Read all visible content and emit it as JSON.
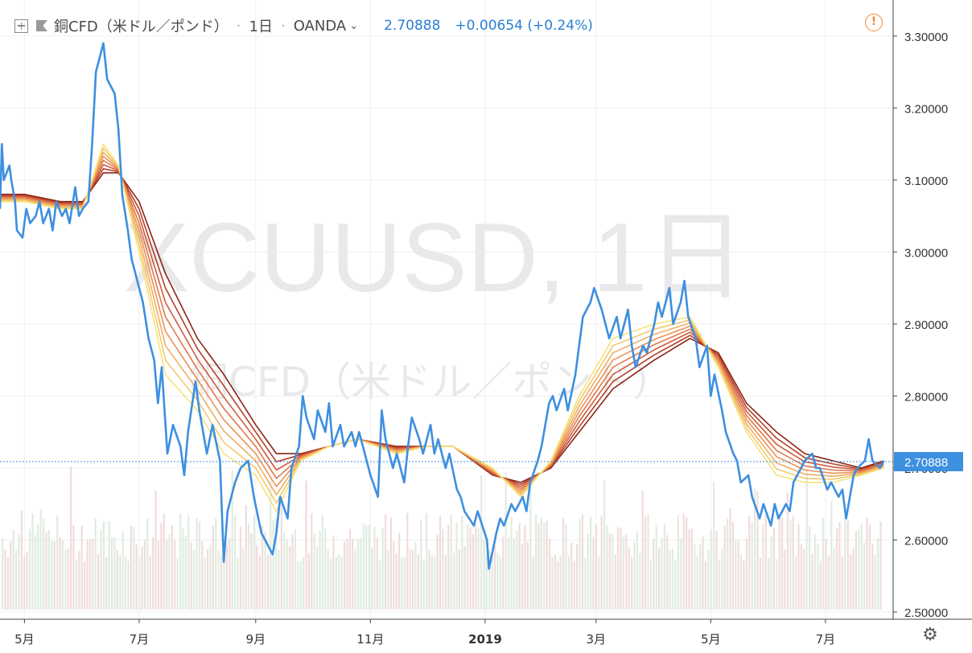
{
  "header": {
    "symbol_name": "銅CFD（米ドル／ポンド）",
    "interval": "1日",
    "exchange": "OANDA",
    "last_price": "2.70888",
    "change": "+0.00654 (+0.24%)"
  },
  "watermark": {
    "line1": "XCUUSD, 1日",
    "line2": "銅CFD（米ドル／ポンド）"
  },
  "icons": {
    "add": "plus-square-icon",
    "flag": "flag-icon",
    "dropdown": "chevron-down-icon",
    "warning": "warning-icon",
    "settings": "gear-icon"
  },
  "colors": {
    "price_line": "#3d8fe0",
    "last_price_badge": "#3d8fe0",
    "ribbon_fast": "#f6e27a",
    "ribbon_slow": "#8b2413",
    "volume": "#e9c8c8"
  },
  "chart_data": {
    "type": "line",
    "y_axis": {
      "ticks": [
        "3.30000",
        "3.20000",
        "3.10000",
        "3.00000",
        "2.90000",
        "2.80000",
        "2.70000",
        "2.60000",
        "2.50000"
      ],
      "range": [
        2.49,
        3.35
      ],
      "last_value_label": "2.70888"
    },
    "x_axis": {
      "labels": [
        "5月",
        "7月",
        "9月",
        "11月",
        "2019",
        "3月",
        "5月",
        "7月"
      ],
      "range": [
        "2018-04-18",
        "2019-08-06"
      ]
    },
    "series": [
      {
        "values": [
          [
            "2018-04-18",
            3.06
          ],
          [
            "2018-04-19",
            3.15
          ],
          [
            "2018-04-20",
            3.1
          ],
          [
            "2018-04-23",
            3.12
          ],
          [
            "2018-04-24",
            3.1
          ],
          [
            "2018-04-26",
            3.07
          ],
          [
            "2018-04-27",
            3.03
          ],
          [
            "2018-04-30",
            3.02
          ],
          [
            "2018-05-02",
            3.06
          ],
          [
            "2018-05-04",
            3.04
          ],
          [
            "2018-05-07",
            3.05
          ],
          [
            "2018-05-09",
            3.07
          ],
          [
            "2018-05-11",
            3.04
          ],
          [
            "2018-05-14",
            3.06
          ],
          [
            "2018-05-16",
            3.03
          ],
          [
            "2018-05-18",
            3.07
          ],
          [
            "2018-05-21",
            3.05
          ],
          [
            "2018-05-23",
            3.06
          ],
          [
            "2018-05-25",
            3.04
          ],
          [
            "2018-05-28",
            3.09
          ],
          [
            "2018-05-30",
            3.05
          ],
          [
            "2018-06-01",
            3.06
          ],
          [
            "2018-06-04",
            3.07
          ],
          [
            "2018-06-06",
            3.15
          ],
          [
            "2018-06-08",
            3.25
          ],
          [
            "2018-06-11",
            3.28
          ],
          [
            "2018-06-12",
            3.29
          ],
          [
            "2018-06-14",
            3.24
          ],
          [
            "2018-06-18",
            3.22
          ],
          [
            "2018-06-20",
            3.17
          ],
          [
            "2018-06-22",
            3.08
          ],
          [
            "2018-06-25",
            3.03
          ],
          [
            "2018-06-27",
            2.99
          ],
          [
            "2018-06-29",
            2.97
          ],
          [
            "2018-07-03",
            2.93
          ],
          [
            "2018-07-06",
            2.88
          ],
          [
            "2018-07-09",
            2.85
          ],
          [
            "2018-07-11",
            2.79
          ],
          [
            "2018-07-13",
            2.84
          ],
          [
            "2018-07-16",
            2.72
          ],
          [
            "2018-07-19",
            2.76
          ],
          [
            "2018-07-23",
            2.73
          ],
          [
            "2018-07-25",
            2.69
          ],
          [
            "2018-07-27",
            2.75
          ],
          [
            "2018-07-31",
            2.82
          ],
          [
            "2018-08-02",
            2.78
          ],
          [
            "2018-08-06",
            2.72
          ],
          [
            "2018-08-09",
            2.76
          ],
          [
            "2018-08-13",
            2.71
          ],
          [
            "2018-08-15",
            2.57
          ],
          [
            "2018-08-17",
            2.64
          ],
          [
            "2018-08-21",
            2.68
          ],
          [
            "2018-08-24",
            2.7
          ],
          [
            "2018-08-28",
            2.71
          ],
          [
            "2018-08-31",
            2.66
          ],
          [
            "2018-09-04",
            2.61
          ],
          [
            "2018-09-06",
            2.6
          ],
          [
            "2018-09-10",
            2.58
          ],
          [
            "2018-09-12",
            2.61
          ],
          [
            "2018-09-14",
            2.66
          ],
          [
            "2018-09-18",
            2.63
          ],
          [
            "2018-09-20",
            2.7
          ],
          [
            "2018-09-24",
            2.73
          ],
          [
            "2018-09-26",
            2.8
          ],
          [
            "2018-09-28",
            2.77
          ],
          [
            "2018-10-02",
            2.74
          ],
          [
            "2018-10-04",
            2.78
          ],
          [
            "2018-10-08",
            2.75
          ],
          [
            "2018-10-10",
            2.79
          ],
          [
            "2018-10-12",
            2.73
          ],
          [
            "2018-10-16",
            2.76
          ],
          [
            "2018-10-18",
            2.73
          ],
          [
            "2018-10-22",
            2.75
          ],
          [
            "2018-10-24",
            2.73
          ],
          [
            "2018-10-26",
            2.75
          ],
          [
            "2018-10-30",
            2.71
          ],
          [
            "2018-11-01",
            2.69
          ],
          [
            "2018-11-05",
            2.66
          ],
          [
            "2018-11-07",
            2.78
          ],
          [
            "2018-11-09",
            2.74
          ],
          [
            "2018-11-13",
            2.7
          ],
          [
            "2018-11-15",
            2.72
          ],
          [
            "2018-11-19",
            2.68
          ],
          [
            "2018-11-21",
            2.73
          ],
          [
            "2018-11-23",
            2.77
          ],
          [
            "2018-11-27",
            2.74
          ],
          [
            "2018-11-29",
            2.72
          ],
          [
            "2018-12-03",
            2.76
          ],
          [
            "2018-12-05",
            2.72
          ],
          [
            "2018-12-07",
            2.74
          ],
          [
            "2018-12-11",
            2.7
          ],
          [
            "2018-12-13",
            2.72
          ],
          [
            "2018-12-17",
            2.67
          ],
          [
            "2018-12-19",
            2.66
          ],
          [
            "2018-12-21",
            2.64
          ],
          [
            "2018-12-26",
            2.62
          ],
          [
            "2018-12-28",
            2.64
          ],
          [
            "2019-01-02",
            2.6
          ],
          [
            "2019-01-03",
            2.56
          ],
          [
            "2019-01-07",
            2.61
          ],
          [
            "2019-01-09",
            2.63
          ],
          [
            "2019-01-11",
            2.62
          ],
          [
            "2019-01-15",
            2.65
          ],
          [
            "2019-01-17",
            2.64
          ],
          [
            "2019-01-21",
            2.66
          ],
          [
            "2019-01-23",
            2.64
          ],
          [
            "2019-01-25",
            2.68
          ],
          [
            "2019-01-29",
            2.71
          ],
          [
            "2019-01-31",
            2.73
          ],
          [
            "2019-02-04",
            2.79
          ],
          [
            "2019-02-06",
            2.8
          ],
          [
            "2019-02-08",
            2.78
          ],
          [
            "2019-02-12",
            2.81
          ],
          [
            "2019-02-14",
            2.78
          ],
          [
            "2019-02-18",
            2.83
          ],
          [
            "2019-02-22",
            2.91
          ],
          [
            "2019-02-26",
            2.93
          ],
          [
            "2019-02-28",
            2.95
          ],
          [
            "2019-03-04",
            2.92
          ],
          [
            "2019-03-06",
            2.9
          ],
          [
            "2019-03-08",
            2.88
          ],
          [
            "2019-03-12",
            2.91
          ],
          [
            "2019-03-14",
            2.88
          ],
          [
            "2019-03-18",
            2.92
          ],
          [
            "2019-03-20",
            2.87
          ],
          [
            "2019-03-22",
            2.84
          ],
          [
            "2019-03-26",
            2.87
          ],
          [
            "2019-03-28",
            2.86
          ],
          [
            "2019-04-01",
            2.9
          ],
          [
            "2019-04-03",
            2.93
          ],
          [
            "2019-04-05",
            2.91
          ],
          [
            "2019-04-09",
            2.95
          ],
          [
            "2019-04-11",
            2.9
          ],
          [
            "2019-04-15",
            2.93
          ],
          [
            "2019-04-17",
            2.96
          ],
          [
            "2019-04-19",
            2.91
          ],
          [
            "2019-04-23",
            2.88
          ],
          [
            "2019-04-25",
            2.84
          ],
          [
            "2019-04-29",
            2.87
          ],
          [
            "2019-05-01",
            2.8
          ],
          [
            "2019-05-03",
            2.83
          ],
          [
            "2019-05-07",
            2.78
          ],
          [
            "2019-05-09",
            2.75
          ],
          [
            "2019-05-13",
            2.72
          ],
          [
            "2019-05-15",
            2.71
          ],
          [
            "2019-05-17",
            2.68
          ],
          [
            "2019-05-21",
            2.69
          ],
          [
            "2019-05-23",
            2.66
          ],
          [
            "2019-05-27",
            2.63
          ],
          [
            "2019-05-29",
            2.65
          ],
          [
            "2019-06-02",
            2.62
          ],
          [
            "2019-06-04",
            2.65
          ],
          [
            "2019-06-06",
            2.63
          ],
          [
            "2019-06-10",
            2.65
          ],
          [
            "2019-06-12",
            2.64
          ],
          [
            "2019-06-14",
            2.68
          ],
          [
            "2019-06-18",
            2.7
          ],
          [
            "2019-06-20",
            2.71
          ],
          [
            "2019-06-24",
            2.72
          ],
          [
            "2019-06-26",
            2.7
          ],
          [
            "2019-06-28",
            2.7
          ],
          [
            "2019-07-02",
            2.67
          ],
          [
            "2019-07-04",
            2.68
          ],
          [
            "2019-07-08",
            2.66
          ],
          [
            "2019-07-10",
            2.67
          ],
          [
            "2019-07-12",
            2.63
          ],
          [
            "2019-07-16",
            2.69
          ],
          [
            "2019-07-18",
            2.7
          ],
          [
            "2019-07-22",
            2.71
          ],
          [
            "2019-07-24",
            2.74
          ],
          [
            "2019-07-26",
            2.71
          ],
          [
            "2019-07-30",
            2.7
          ],
          [
            "2019-08-01",
            2.71
          ]
        ]
      }
    ],
    "ribbon": {
      "count": 8,
      "colors": [
        "#f6e27a",
        "#f3c96d",
        "#efad62",
        "#ea9257",
        "#e2784b",
        "#d05c3c",
        "#b4412a",
        "#8b2413"
      ],
      "values": [
        [
          "2018-04-18",
          3.07,
          3.08
        ],
        [
          "2018-05-01",
          3.07,
          3.08
        ],
        [
          "2018-05-20",
          3.06,
          3.07
        ],
        [
          "2018-06-01",
          3.06,
          3.07
        ],
        [
          "2018-06-12",
          3.15,
          3.11
        ],
        [
          "2018-06-20",
          3.12,
          3.11
        ],
        [
          "2018-07-01",
          3.0,
          3.07
        ],
        [
          "2018-07-15",
          2.83,
          2.97
        ],
        [
          "2018-08-01",
          2.78,
          2.88
        ],
        [
          "2018-08-15",
          2.72,
          2.83
        ],
        [
          "2018-09-01",
          2.69,
          2.76
        ],
        [
          "2018-09-12",
          2.64,
          2.72
        ],
        [
          "2018-09-25",
          2.71,
          2.72
        ],
        [
          "2018-10-10",
          2.73,
          2.73
        ],
        [
          "2018-10-25",
          2.74,
          2.74
        ],
        [
          "2018-11-15",
          2.72,
          2.73
        ],
        [
          "2018-12-01",
          2.73,
          2.73
        ],
        [
          "2018-12-15",
          2.73,
          2.73
        ],
        [
          "2019-01-05",
          2.7,
          2.69
        ],
        [
          "2019-01-20",
          2.66,
          2.68
        ],
        [
          "2019-02-05",
          2.71,
          2.7
        ],
        [
          "2019-02-20",
          2.8,
          2.75
        ],
        [
          "2019-03-10",
          2.88,
          2.81
        ],
        [
          "2019-04-01",
          2.9,
          2.85
        ],
        [
          "2019-04-20",
          2.91,
          2.88
        ],
        [
          "2019-05-05",
          2.84,
          2.86
        ],
        [
          "2019-05-20",
          2.75,
          2.79
        ],
        [
          "2019-06-05",
          2.69,
          2.75
        ],
        [
          "2019-06-20",
          2.68,
          2.72
        ],
        [
          "2019-07-05",
          2.68,
          2.71
        ],
        [
          "2019-07-20",
          2.69,
          2.7
        ],
        [
          "2019-08-01",
          2.7,
          2.71
        ]
      ]
    }
  }
}
